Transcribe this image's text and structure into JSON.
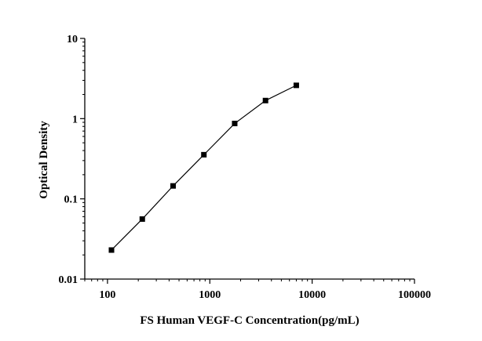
{
  "chart_data": {
    "type": "line",
    "title": "",
    "xlabel": "FS Human VEGF-C Concentration(pg/mL)",
    "ylabel": "Optical Density",
    "xscale": "log",
    "yscale": "log",
    "xlim": [
      60,
      100000
    ],
    "ylim": [
      0.01,
      10
    ],
    "x_ticks": [
      100,
      1000,
      10000,
      100000
    ],
    "x_tick_labels": [
      "100",
      "1000",
      "10000",
      "100000"
    ],
    "y_ticks": [
      0.01,
      0.1,
      1,
      10
    ],
    "y_tick_labels": [
      "0.01",
      "0.1",
      "1",
      "10"
    ],
    "grid": false,
    "legend": "none",
    "series": [
      {
        "marker": "square",
        "color": "#000000",
        "x": [
          109.4,
          218.8,
          437.5,
          875,
          1750,
          3500,
          7000
        ],
        "y": [
          0.023,
          0.056,
          0.145,
          0.355,
          0.87,
          1.68,
          2.6
        ]
      }
    ]
  }
}
